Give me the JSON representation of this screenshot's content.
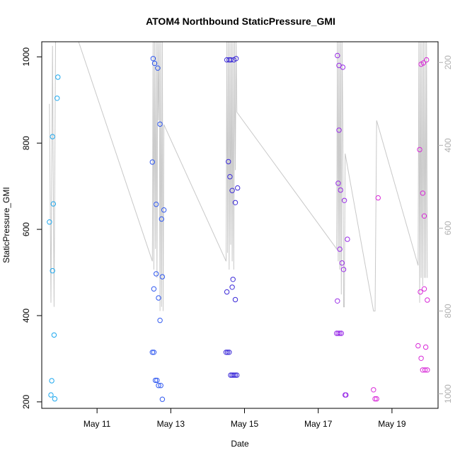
{
  "chart_data": {
    "type": "scatter",
    "title": "ATOM4 Northbound StaticPressure_GMI",
    "xlabel": "Date",
    "ylabel": "StaticPressure_GMI",
    "x_range": [
      "2005-05-09 12:00",
      "2005-05-20 06:00"
    ],
    "ylim": [
      185,
      1035
    ],
    "x_ticks": [
      {
        "date": "2005-05-11 00:00",
        "label": "May 11"
      },
      {
        "date": "2005-05-13 00:00",
        "label": "May 13"
      },
      {
        "date": "2005-05-15 00:00",
        "label": "May 15"
      },
      {
        "date": "2005-05-17 00:00",
        "label": "May 17"
      },
      {
        "date": "2005-05-19 00:00",
        "label": "May 19"
      }
    ],
    "y_ticks": [
      200,
      400,
      600,
      800,
      1000
    ],
    "secondary_axis": {
      "color": "#b0b0b0",
      "ticks": [
        200,
        400,
        600,
        800,
        1000
      ],
      "range": [
        150,
        1035
      ],
      "inverted": true
    },
    "grid": false,
    "legend": "none",
    "point_colors_by_day": [
      "#1ea8ee",
      "#2f58f0",
      "#3b2ad8",
      "#9a2ee8",
      "#d82ad8"
    ],
    "series": [
      {
        "color": "#1ea8ee",
        "points": [
          [
            "2005-05-09 17:00",
            617
          ],
          [
            "2005-05-09 18:00",
            216
          ],
          [
            "2005-05-09 18:30",
            249
          ],
          [
            "2005-05-09 19:00",
            815
          ],
          [
            "2005-05-09 19:00",
            504
          ],
          [
            "2005-05-09 19:30",
            659
          ],
          [
            "2005-05-09 20:00",
            355
          ],
          [
            "2005-05-09 20:30",
            207
          ],
          [
            "2005-05-09 22:00",
            904
          ],
          [
            "2005-05-09 22:30",
            953
          ]
        ]
      },
      {
        "color": "#2f58f0",
        "points": [
          [
            "2005-05-12 12:00",
            756
          ],
          [
            "2005-05-12 12:00",
            315
          ],
          [
            "2005-05-12 12:30",
            996
          ],
          [
            "2005-05-12 13:00",
            462
          ],
          [
            "2005-05-12 13:00",
            315
          ],
          [
            "2005-05-12 13:30",
            985
          ],
          [
            "2005-05-12 14:00",
            250
          ],
          [
            "2005-05-12 14:30",
            658
          ],
          [
            "2005-05-12 14:30",
            497
          ],
          [
            "2005-05-12 15:00",
            250
          ],
          [
            "2005-05-12 15:30",
            974
          ],
          [
            "2005-05-12 16:00",
            441
          ],
          [
            "2005-05-12 16:00",
            238
          ],
          [
            "2005-05-12 17:00",
            844
          ],
          [
            "2005-05-12 17:00",
            389
          ],
          [
            "2005-05-12 17:30",
            238
          ],
          [
            "2005-05-12 18:00",
            624
          ],
          [
            "2005-05-12 18:30",
            206
          ],
          [
            "2005-05-12 18:30",
            490
          ],
          [
            "2005-05-12 19:30",
            645
          ]
        ]
      },
      {
        "color": "#3b2ad8",
        "points": [
          [
            "2005-05-14 12:00",
            315
          ],
          [
            "2005-05-14 12:30",
            455
          ],
          [
            "2005-05-14 12:30",
            993
          ],
          [
            "2005-05-14 13:00",
            315
          ],
          [
            "2005-05-14 13:30",
            757
          ],
          [
            "2005-05-14 14:00",
            993
          ],
          [
            "2005-05-14 14:00",
            315
          ],
          [
            "2005-05-14 14:30",
            722
          ],
          [
            "2005-05-14 15:00",
            993
          ],
          [
            "2005-05-14 15:00",
            262
          ],
          [
            "2005-05-14 16:00",
            466
          ],
          [
            "2005-05-14 16:00",
            690
          ],
          [
            "2005-05-14 16:00",
            262
          ],
          [
            "2005-05-14 16:30",
            484
          ],
          [
            "2005-05-14 17:00",
            262
          ],
          [
            "2005-05-14 17:00",
            993
          ],
          [
            "2005-05-14 18:00",
            437
          ],
          [
            "2005-05-14 18:00",
            662
          ],
          [
            "2005-05-14 18:00",
            262
          ],
          [
            "2005-05-14 18:30",
            996
          ],
          [
            "2005-05-14 19:00",
            262
          ],
          [
            "2005-05-14 19:30",
            696
          ]
        ]
      },
      {
        "color": "#9a2ee8",
        "points": [
          [
            "2005-05-17 12:00",
            359
          ],
          [
            "2005-05-17 12:30",
            434
          ],
          [
            "2005-05-17 12:30",
            1003
          ],
          [
            "2005-05-17 13:00",
            359
          ],
          [
            "2005-05-17 13:00",
            707
          ],
          [
            "2005-05-17 13:30",
            830
          ],
          [
            "2005-05-17 13:30",
            980
          ],
          [
            "2005-05-17 14:00",
            554
          ],
          [
            "2005-05-17 14:00",
            359
          ],
          [
            "2005-05-17 14:30",
            691
          ],
          [
            "2005-05-17 15:00",
            359
          ],
          [
            "2005-05-17 15:30",
            522
          ],
          [
            "2005-05-17 16:00",
            976
          ],
          [
            "2005-05-17 16:30",
            507
          ],
          [
            "2005-05-17 17:00",
            667
          ],
          [
            "2005-05-17 17:30",
            216
          ],
          [
            "2005-05-17 18:00",
            216
          ],
          [
            "2005-05-17 19:00",
            577
          ]
        ]
      },
      {
        "color": "#d82ad8",
        "points": [
          [
            "2005-05-18 12:00",
            228
          ],
          [
            "2005-05-18 13:00",
            207
          ],
          [
            "2005-05-18 14:00",
            207
          ],
          [
            "2005-05-18 15:00",
            673
          ],
          [
            "2005-05-19 17:00",
            330
          ],
          [
            "2005-05-19 18:00",
            785
          ],
          [
            "2005-05-19 18:30",
            455
          ],
          [
            "2005-05-19 19:00",
            301
          ],
          [
            "2005-05-19 19:00",
            983
          ],
          [
            "2005-05-19 20:00",
            684
          ],
          [
            "2005-05-19 20:00",
            274
          ],
          [
            "2005-05-19 20:30",
            986
          ],
          [
            "2005-05-19 21:00",
            462
          ],
          [
            "2005-05-19 21:00",
            631
          ],
          [
            "2005-05-19 21:30",
            274
          ],
          [
            "2005-05-19 22:00",
            327
          ],
          [
            "2005-05-19 22:30",
            993
          ],
          [
            "2005-05-19 23:00",
            436
          ],
          [
            "2005-05-19 23:00",
            274
          ]
        ]
      }
    ],
    "trace": {
      "color": "#c8c8c8",
      "axis": "secondary",
      "points": [
        [
          "2005-05-09 17:00",
          300
        ],
        [
          "2005-05-09 18:00",
          780
        ],
        [
          "2005-05-09 19:00",
          160
        ],
        [
          "2005-05-09 20:00",
          790
        ],
        [
          "2005-05-09 21:00",
          150
        ],
        [
          "2005-05-09 22:00",
          150
        ],
        [
          "2005-05-10 12:00",
          150
        ],
        [
          "2005-05-12 12:00",
          680
        ],
        [
          "2005-05-12 12:30",
          150
        ],
        [
          "2005-05-12 13:00",
          700
        ],
        [
          "2005-05-12 13:30",
          150
        ],
        [
          "2005-05-12 14:00",
          650
        ],
        [
          "2005-05-12 14:30",
          150
        ],
        [
          "2005-05-12 15:00",
          720
        ],
        [
          "2005-05-12 15:30",
          150
        ],
        [
          "2005-05-12 16:00",
          340
        ],
        [
          "2005-05-12 16:30",
          150
        ],
        [
          "2005-05-12 17:00",
          800
        ],
        [
          "2005-05-12 17:30",
          150
        ],
        [
          "2005-05-12 18:00",
          790
        ],
        [
          "2005-05-12 18:30",
          150
        ],
        [
          "2005-05-12 19:00",
          800
        ],
        [
          "2005-05-12 19:30",
          350
        ],
        [
          "2005-05-14 12:00",
          680
        ],
        [
          "2005-05-14 12:30",
          150
        ],
        [
          "2005-05-14 13:00",
          660
        ],
        [
          "2005-05-14 13:30",
          150
        ],
        [
          "2005-05-14 14:00",
          700
        ],
        [
          "2005-05-14 14:30",
          150
        ],
        [
          "2005-05-14 15:00",
          640
        ],
        [
          "2005-05-14 15:30",
          150
        ],
        [
          "2005-05-14 16:00",
          680
        ],
        [
          "2005-05-14 16:30",
          150
        ],
        [
          "2005-05-14 17:00",
          700
        ],
        [
          "2005-05-14 17:30",
          150
        ],
        [
          "2005-05-14 18:00",
          460
        ],
        [
          "2005-05-14 18:30",
          150
        ],
        [
          "2005-05-14 19:00",
          320
        ],
        [
          "2005-05-17 12:00",
          650
        ],
        [
          "2005-05-17 12:30",
          150
        ],
        [
          "2005-05-17 13:00",
          680
        ],
        [
          "2005-05-17 13:30",
          150
        ],
        [
          "2005-05-17 14:00",
          700
        ],
        [
          "2005-05-17 14:30",
          150
        ],
        [
          "2005-05-17 15:00",
          760
        ],
        [
          "2005-05-17 15:30",
          150
        ],
        [
          "2005-05-17 16:00",
          340
        ],
        [
          "2005-05-17 16:30",
          790
        ],
        [
          "2005-05-17 17:00",
          790
        ],
        [
          "2005-05-17 17:30",
          420
        ],
        [
          "2005-05-18 12:00",
          800
        ],
        [
          "2005-05-18 13:00",
          800
        ],
        [
          "2005-05-18 14:00",
          340
        ],
        [
          "2005-05-19 17:00",
          690
        ],
        [
          "2005-05-19 17:30",
          150
        ],
        [
          "2005-05-19 18:00",
          780
        ],
        [
          "2005-05-19 18:30",
          150
        ],
        [
          "2005-05-19 19:00",
          720
        ],
        [
          "2005-05-19 19:30",
          150
        ],
        [
          "2005-05-19 20:00",
          740
        ],
        [
          "2005-05-19 20:30",
          150
        ],
        [
          "2005-05-19 21:00",
          720
        ],
        [
          "2005-05-19 21:30",
          150
        ],
        [
          "2005-05-19 22:00",
          720
        ],
        [
          "2005-05-19 22:30",
          150
        ],
        [
          "2005-05-19 23:00",
          720
        ]
      ]
    }
  }
}
